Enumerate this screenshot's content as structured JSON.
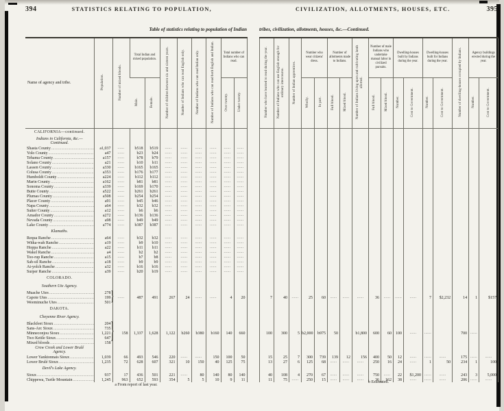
{
  "left_page": {
    "page_number": "394",
    "running_title": "STATISTICS RELATING TO POPULATION,",
    "subtitle": "Table of statistics relating to population of Indian",
    "footnote": "a From report of last year.",
    "headers": {
      "name": "Name of agency and tribe.",
      "population": "Population.",
      "mixed_bloods": "Number of mixed bloods.",
      "total_population_group": "Total Indian and mixed population.",
      "male": "Male.",
      "female": "Female.",
      "children": "Number of children between six and sixteen years.",
      "read_english": "Number of Indians who can read English only.",
      "read_indian": "Number of Indians who can read Indian only.",
      "read_both": "Number of Indians who can read both English and Indian.",
      "total_read_group": "Total number of Indians who can read.",
      "over_twenty": "Over twenty.",
      "under_twenty": "Under twenty."
    }
  },
  "right_page": {
    "page_number": "395",
    "running_title": "CIVILIZATION, ALLOTMENTS, HOUSES, ETC.",
    "subtitle": "tribes, civilization, allotments, houses, &c.—Continued.",
    "footnote": "b Estimated.",
    "headers": {
      "learned_to_read": "Number who have learned to read during the year.",
      "use_english": "Number of Indians who can use English enough for ordinary intercourse.",
      "apprentices": "Number of Indian apprentices.",
      "dress_group": "Number who wear citizens' dress.",
      "wholly": "Wholly.",
      "in_part": "In part.",
      "allotments_group": "Number of allotments made to Indians.",
      "allot_full": "Full blood.",
      "allot_mixed": "Mixed blood.",
      "living_on_allotments": "Number of Indians living upon and cultivating lands allotted.",
      "labor_group": "Number of male Indians who undertake manual labor in civilized pursuits.",
      "labor_full": "Full blood.",
      "labor_mixed": "Mixed blood.",
      "built_by_group": "Dwelling-houses built by Indians during the year.",
      "built_by_number": "Number.",
      "built_by_cost": "Cost to Government.",
      "built_for_group": "Dwelling-houses built for Indians during the year.",
      "built_for_number": "Number.",
      "built_for_cost": "Cost to Government.",
      "occupied": "Number of dwelling-houses occupied by Indians.",
      "agency_group": "Agency buildings erected during the year.",
      "agency_number": "Number.",
      "agency_cost": "Cost to Government."
    }
  },
  "rows": [
    {
      "t": "sec",
      "label": "CALIFORNIA—continued."
    },
    {
      "t": "sub2",
      "label": "Indians in California, &c.—",
      "label2": "Continued."
    },
    {
      "t": "d",
      "n": "Shasta County",
      "l": [
        "a1,037",
        ".",
        "b518",
        "b519",
        ".",
        ".",
        ".",
        ".",
        ".",
        "."
      ]
    },
    {
      "t": "d",
      "n": "Yolo County",
      "l": [
        "a47",
        ".",
        "b23",
        "b24",
        ".",
        ".",
        ".",
        ".",
        ".",
        "."
      ]
    },
    {
      "t": "d",
      "n": "Tehama County",
      "l": [
        "a157",
        ".",
        "b78",
        "b79",
        ".",
        ".",
        ".",
        ".",
        ".",
        "."
      ]
    },
    {
      "t": "d",
      "n": "Solano County",
      "l": [
        "a21",
        ".",
        "b10",
        "b11",
        ".",
        ".",
        ".",
        ".",
        ".",
        "."
      ]
    },
    {
      "t": "d",
      "n": "Lassen County",
      "l": [
        "a330",
        ".",
        "b165",
        "b165",
        ".",
        ".",
        ".",
        ".",
        ".",
        "."
      ]
    },
    {
      "t": "d",
      "n": "Colusa County",
      "l": [
        "a353",
        ".",
        "b176",
        "b177",
        ".",
        ".",
        ".",
        ".",
        ".",
        "."
      ]
    },
    {
      "t": "d",
      "n": "Humboldt County",
      "l": [
        "a224",
        ".",
        "b112",
        "b112",
        ".",
        ".",
        ".",
        ".",
        ".",
        "."
      ]
    },
    {
      "t": "d",
      "n": "Marin County",
      "l": [
        "a162",
        ".",
        "b81",
        "b81",
        ".",
        ".",
        ".",
        ".",
        ".",
        "."
      ]
    },
    {
      "t": "d",
      "n": "Sonoma County",
      "l": [
        "a339",
        ".",
        "b169",
        "b170",
        ".",
        ".",
        ".",
        ".",
        ".",
        "."
      ]
    },
    {
      "t": "d",
      "n": "Butte County",
      "l": [
        "a522",
        ".",
        "b261",
        "b261",
        ".",
        ".",
        ".",
        ".",
        ".",
        "."
      ]
    },
    {
      "t": "d",
      "n": "Plumas County",
      "l": [
        "a508",
        ".",
        "b254",
        "b254",
        ".",
        ".",
        ".",
        ".",
        ".",
        "."
      ]
    },
    {
      "t": "d",
      "n": "Placer County",
      "l": [
        "a91",
        ".",
        "b45",
        "b46",
        ".",
        ".",
        ".",
        ".",
        ".",
        "."
      ]
    },
    {
      "t": "d",
      "n": "Napa County",
      "l": [
        "a64",
        ".",
        "b32",
        "b32",
        ".",
        ".",
        ".",
        ".",
        ".",
        "."
      ]
    },
    {
      "t": "d",
      "n": "Sutter County",
      "l": [
        "a12",
        ".",
        "b6",
        "b6",
        ".",
        ".",
        ".",
        ".",
        ".",
        "."
      ]
    },
    {
      "t": "d",
      "n": "Amador County",
      "l": [
        "a272",
        ".",
        "b136",
        "b136",
        ".",
        ".",
        ".",
        ".",
        ".",
        "."
      ]
    },
    {
      "t": "d",
      "n": "Nevada County",
      "l": [
        "a98",
        ".",
        "b49",
        "b49",
        ".",
        ".",
        ".",
        ".",
        ".",
        "."
      ]
    },
    {
      "t": "d",
      "n": "Lake County",
      "l": [
        "a774",
        ".",
        "b387",
        "b387",
        ".",
        ".",
        ".",
        ".",
        ".",
        "."
      ]
    },
    {
      "t": "sub",
      "label": "Klamaths."
    },
    {
      "t": "d",
      "n": "Requa Ranche",
      "l": [
        "a64",
        ".",
        "b32",
        "b32",
        ".",
        ".",
        ".",
        ".",
        ".",
        "."
      ]
    },
    {
      "t": "d",
      "n": "Witka-wah Ranche",
      "l": [
        "a19",
        ".",
        "b9",
        "b10",
        ".",
        ".",
        ".",
        ".",
        ".",
        "."
      ]
    },
    {
      "t": "d",
      "n": "Hoppa Ranche",
      "l": [
        "a22",
        ".",
        "b11",
        "b11",
        ".",
        ".",
        ".",
        ".",
        ".",
        "."
      ]
    },
    {
      "t": "d",
      "n": "Wakel Ranche",
      "l": [
        "a4",
        ".",
        "b2",
        "b2",
        ".",
        ".",
        ".",
        ".",
        ".",
        "."
      ]
    },
    {
      "t": "d",
      "n": "Too-rup Ranche",
      "l": [
        "a15",
        ".",
        "b7",
        "b8",
        ".",
        ".",
        ".",
        ".",
        ".",
        "."
      ]
    },
    {
      "t": "d",
      "n": "Sah-sil Ranche",
      "l": [
        "a18",
        ".",
        "b9",
        "b9",
        ".",
        ".",
        ".",
        ".",
        ".",
        "."
      ]
    },
    {
      "t": "d",
      "n": "At-yolch Ranche",
      "l": [
        "a32",
        ".",
        "b16",
        "b16",
        ".",
        ".",
        ".",
        ".",
        ".",
        "."
      ]
    },
    {
      "t": "d",
      "n": "Surper Ranche",
      "l": [
        "a39",
        ".",
        "b20",
        "b19",
        ".",
        ".",
        ".",
        ".",
        ".",
        "."
      ]
    },
    {
      "t": "sec",
      "label": "COLORADO."
    },
    {
      "t": "sub",
      "label": "Southern Ute Agency."
    },
    {
      "t": "d",
      "n": "Muache Utes",
      "l": [
        "278",
        "",
        "",
        "",
        "",
        "",
        "",
        "",
        "",
        ""
      ],
      "br": 3
    },
    {
      "t": "d",
      "n": "Capote Utes",
      "l": [
        "199",
        ".",
        "487",
        "491",
        "267",
        "24",
        ".",
        ".",
        "4",
        "20"
      ],
      "r": [
        "7",
        "40",
        ".",
        "25",
        "60",
        ".",
        ".",
        ".",
        "36",
        ".",
        ".",
        ".",
        "7",
        "$2,232",
        "14",
        "1",
        "$157"
      ]
    },
    {
      "t": "d",
      "n": "Weeminuche Utes",
      "l": [
        "501",
        "",
        "",
        "",
        "",
        "",
        "",
        "",
        "",
        ""
      ]
    },
    {
      "t": "sec",
      "label": "DAKOTA."
    },
    {
      "t": "sub",
      "label": "Cheyenne River Agency."
    },
    {
      "t": "d",
      "n": "Blackfeet Sioux",
      "l": [
        "204",
        "",
        "",
        "",
        "",
        "",
        "",
        "",
        "",
        ""
      ],
      "br": 5
    },
    {
      "t": "d",
      "n": "Sans-Arc Sioux",
      "l": [
        "735",
        "",
        "",
        "",
        "",
        "",
        "",
        "",
        "",
        ""
      ]
    },
    {
      "t": "d",
      "n": "Minneconjou Sioux",
      "l": [
        "1,221",
        "158",
        "1,337",
        "1,628",
        "1,122",
        "b260",
        "b380",
        "b160",
        "140",
        "660"
      ],
      "r": [
        "100",
        "300",
        "5",
        "b2,000",
        "b975",
        "50",
        "",
        "b1,800",
        "600",
        "60",
        "100",
        ".",
        ".",
        "",
        "700",
        ".",
        ""
      ]
    },
    {
      "t": "d",
      "n": "Two Kettle Sioux",
      "l": [
        "647",
        "",
        "",
        "",
        "",
        "",
        "",
        "",
        "",
        ""
      ]
    },
    {
      "t": "d",
      "n": "Mixed bloods",
      "l": [
        "158",
        "",
        "",
        "",
        "",
        "",
        "",
        "",
        "",
        ""
      ]
    },
    {
      "t": "sub2",
      "label": "Crow Creek and Lower Brulé",
      "label2": "Agency."
    },
    {
      "t": "d",
      "n": "Lower Yanktonnais Sioux",
      "l": [
        "1,039",
        "66",
        "493",
        "546",
        "220",
        ".",
        ".",
        "150",
        "100",
        "50"
      ],
      "r": [
        "15",
        "25",
        "7",
        "300",
        "739",
        "139",
        "12",
        "156",
        "400",
        "50",
        "12",
        ".",
        ".",
        ".",
        "175",
        ".",
        "."
      ]
    },
    {
      "t": "d",
      "n": "Lower Brulé Sioux",
      "l": [
        "1,235",
        "72",
        "628",
        "607",
        "321",
        "10",
        "150",
        "40",
        "125",
        "75"
      ],
      "r": [
        "13",
        "27",
        "6",
        "125",
        "68",
        ".",
        ".",
        ".",
        "250",
        "16",
        "24",
        ".",
        "1",
        "50",
        "234",
        "1",
        "100"
      ]
    },
    {
      "t": "sub",
      "label": "Devil's Lake Agency."
    },
    {
      "t": "d",
      "n": "Sioux",
      "l": [
        "937",
        "17",
        "436",
        "501",
        "221",
        ".",
        "80",
        "140",
        "80",
        "140"
      ],
      "r": [
        "40",
        "108",
        "4",
        "270",
        "67",
        ".",
        ".",
        ".",
        "750",
        ".",
        "22",
        "$1,200",
        ".",
        ".",
        "243",
        "3",
        "5,000"
      ]
    },
    {
      "t": "d",
      "n": "Chippewa, Turtle Mountain",
      "l": [
        "1,245",
        "963",
        "652",
        "593",
        "354",
        "5",
        "5",
        "10",
        "9",
        "11"
      ],
      "r": [
        "11",
        "75",
        ".",
        "250",
        "15",
        ".",
        ".",
        ".",
        "36",
        "162",
        "38",
        ".",
        ".",
        ".",
        "206",
        ".",
        "."
      ]
    }
  ]
}
